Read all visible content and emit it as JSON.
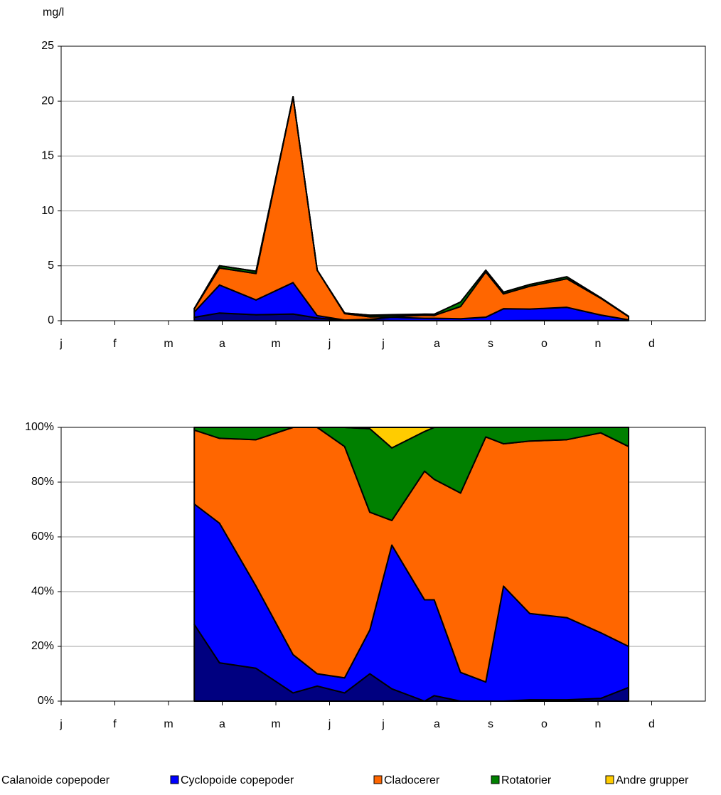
{
  "chart_data": [
    {
      "type": "area",
      "stacked": true,
      "ylabel": "mg/l",
      "x": [
        2.48,
        2.95,
        3.63,
        4.32,
        4.77,
        5.28,
        5.75,
        6.16,
        6.77,
        6.95,
        7.44,
        7.91,
        8.24,
        8.73,
        9.42,
        10.05,
        10.57
      ],
      "xlim": [
        0,
        12
      ],
      "xticks": [
        {
          "value": 0,
          "label": "j"
        },
        {
          "value": 1,
          "label": "f"
        },
        {
          "value": 2,
          "label": "m"
        },
        {
          "value": 3,
          "label": "a"
        },
        {
          "value": 4,
          "label": "m"
        },
        {
          "value": 5,
          "label": "j"
        },
        {
          "value": 6,
          "label": "j"
        },
        {
          "value": 7,
          "label": "a"
        },
        {
          "value": 8,
          "label": "s"
        },
        {
          "value": 9,
          "label": "o"
        },
        {
          "value": 10,
          "label": "n"
        },
        {
          "value": 11,
          "label": "d"
        }
      ],
      "ylim": [
        0,
        25
      ],
      "yticks": [
        0,
        5,
        10,
        15,
        20,
        25
      ],
      "grid": true,
      "series": [
        {
          "name": "Calanoide copepoder",
          "color": "#000080",
          "values": [
            0.31,
            0.7,
            0.54,
            0.61,
            0.25,
            0.02,
            0.05,
            0.02,
            0,
            0.01,
            0,
            0,
            0,
            0.02,
            0.02,
            0.02,
            0.02
          ]
        },
        {
          "name": "Cyclopoide copepoder",
          "color": "#0000ff",
          "values": [
            0.48,
            2.55,
            1.35,
            2.86,
            0.21,
            0.04,
            0.08,
            0.29,
            0.22,
            0.21,
            0.18,
            0.32,
            1.09,
            1.04,
            1.2,
            0.5,
            0.06
          ]
        },
        {
          "name": "Cladocerer",
          "color": "#ff6600",
          "values": [
            0.3,
            1.55,
            2.41,
            16.93,
            4.14,
            0.59,
            0.22,
            0.05,
            0.28,
            0.26,
            1.11,
            4.12,
            1.35,
            2.08,
            2.6,
            1.53,
            0.29
          ]
        },
        {
          "name": "Rotatorier",
          "color": "#008000",
          "values": [
            0.01,
            0.2,
            0.2,
            0,
            0,
            0.05,
            0.15,
            0.15,
            0.09,
            0.11,
            0.41,
            0.16,
            0.16,
            0.16,
            0.18,
            0.05,
            0.03
          ]
        },
        {
          "name": "Andre grupper",
          "color": "#ffcc00",
          "values": [
            0,
            0,
            0,
            0,
            0,
            0,
            0,
            0.04,
            0.01,
            0,
            0,
            0,
            0,
            0,
            0,
            0,
            0
          ]
        }
      ]
    },
    {
      "type": "area",
      "stacked": true,
      "x": [
        2.48,
        2.95,
        3.63,
        4.32,
        4.77,
        5.28,
        5.75,
        6.16,
        6.77,
        6.95,
        7.44,
        7.91,
        8.24,
        8.73,
        9.42,
        10.05,
        10.57
      ],
      "xlim": [
        0,
        12
      ],
      "xticks": [
        {
          "value": 0,
          "label": "j"
        },
        {
          "value": 1,
          "label": "f"
        },
        {
          "value": 2,
          "label": "m"
        },
        {
          "value": 3,
          "label": "a"
        },
        {
          "value": 4,
          "label": "m"
        },
        {
          "value": 5,
          "label": "j"
        },
        {
          "value": 6,
          "label": "j"
        },
        {
          "value": 7,
          "label": "a"
        },
        {
          "value": 8,
          "label": "s"
        },
        {
          "value": 9,
          "label": "o"
        },
        {
          "value": 10,
          "label": "n"
        },
        {
          "value": 11,
          "label": "d"
        }
      ],
      "ylim": [
        0,
        100
      ],
      "yticks": [
        {
          "value": 0,
          "label": "0%"
        },
        {
          "value": 20,
          "label": "20%"
        },
        {
          "value": 40,
          "label": "40%"
        },
        {
          "value": 60,
          "label": "60%"
        },
        {
          "value": 80,
          "label": "80%"
        },
        {
          "value": 100,
          "label": "100%"
        }
      ],
      "grid": true,
      "series": [
        {
          "values": [
            28,
            14,
            12,
            3,
            5.5,
            3,
            10,
            4.5,
            0,
            2,
            0,
            0,
            0,
            0.5,
            0.5,
            1,
            5
          ]
        },
        {
          "values": [
            44,
            51,
            30,
            14,
            4.5,
            5.5,
            16,
            52.5,
            37,
            35,
            10.5,
            7,
            42,
            31.5,
            30,
            24,
            15
          ]
        },
        {
          "values": [
            27,
            31,
            53.5,
            83,
            90,
            84.5,
            43,
            9,
            47,
            44,
            65.5,
            89.5,
            52,
            63,
            65,
            73,
            73
          ]
        },
        {
          "values": [
            1,
            4,
            4.5,
            0,
            0,
            7,
            30.5,
            26.5,
            14.5,
            19,
            24,
            3.5,
            6,
            5,
            4.5,
            2,
            7
          ]
        },
        {
          "values": [
            0,
            0,
            0,
            0,
            0,
            0,
            0.5,
            7.5,
            1.5,
            0,
            0,
            0,
            0,
            0,
            0,
            0,
            0
          ]
        }
      ]
    }
  ]
}
